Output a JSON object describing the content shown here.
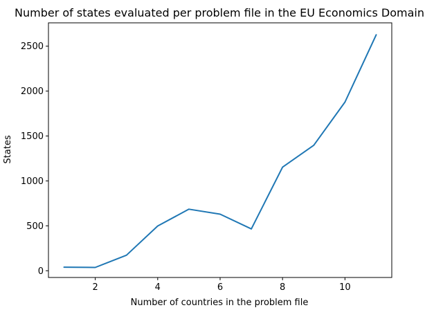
{
  "chart_data": {
    "type": "line",
    "title": "Number of states evaluated per problem file in the EU Economics Domain",
    "xlabel": "Number of countries in the problem file",
    "ylabel": "States",
    "x": [
      1,
      2,
      3,
      4,
      5,
      6,
      7,
      8,
      9,
      10,
      11
    ],
    "series": [
      {
        "values": [
          40,
          37,
          173,
          498,
          685,
          630,
          466,
          1153,
          1397,
          1878,
          2627
        ],
        "color": "#1f77b4"
      }
    ],
    "xlim": [
      0.5,
      11.5
    ],
    "ylim": [
      -75,
      2760
    ],
    "xticks": [
      2,
      4,
      6,
      8,
      10
    ],
    "yticks": [
      0,
      500,
      1000,
      1500,
      2000,
      2500
    ],
    "grid": false,
    "legend": "none"
  }
}
